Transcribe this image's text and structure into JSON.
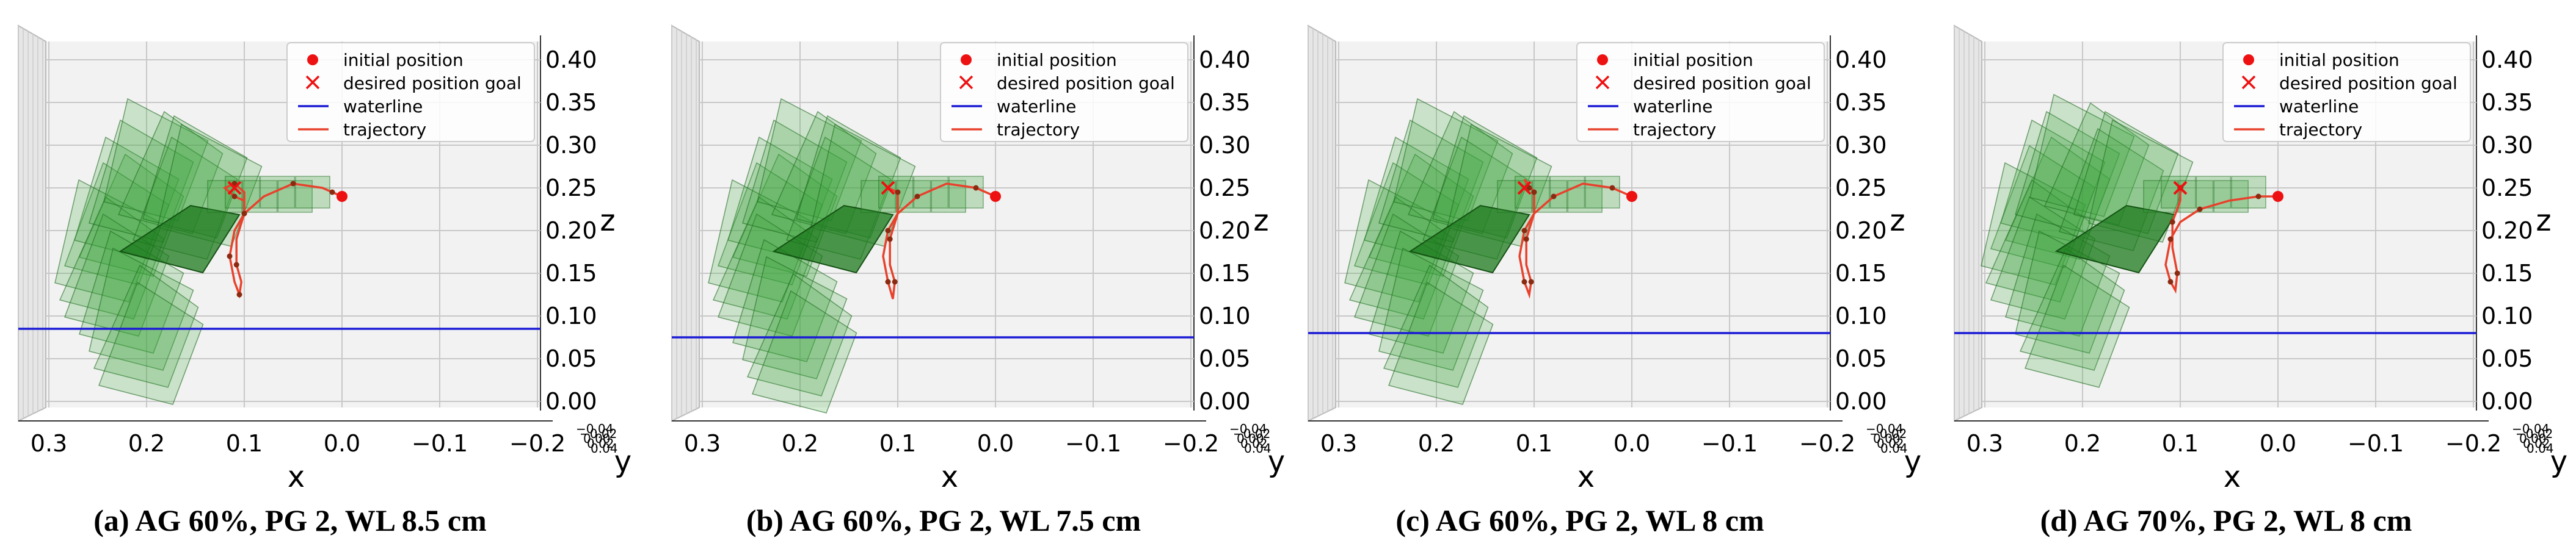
{
  "chart_data": [
    {
      "type": "3d-trajectory",
      "caption": "(a) AG 60%, PG 2, WL 8.5 cm",
      "xlabel": "x",
      "ylabel": "y",
      "zlabel": "z",
      "x_ticks": [
        "0.3",
        "0.2",
        "0.1",
        "0.0",
        "−0.1",
        "−0.2"
      ],
      "y_ticks": [
        "−0.04",
        "−0.02",
        "0.00",
        "0.02",
        "0.04"
      ],
      "z_ticks": [
        "0.00",
        "0.05",
        "0.10",
        "0.15",
        "0.20",
        "0.25",
        "0.30",
        "0.35",
        "0.40"
      ],
      "xlim": [
        0.3,
        -0.2
      ],
      "zlim": [
        0.0,
        0.4
      ],
      "legend": [
        "initial position",
        "desired position goal",
        "waterline",
        "trajectory"
      ],
      "waterline_z": 0.085,
      "initial_position": {
        "x": 0.0,
        "z": 0.24
      },
      "goal_position": {
        "x": 0.11,
        "z": 0.25
      },
      "trajectory": [
        {
          "x": 0.0,
          "z": 0.24
        },
        {
          "x": 0.01,
          "z": 0.245
        },
        {
          "x": 0.02,
          "z": 0.25
        },
        {
          "x": 0.05,
          "z": 0.255
        },
        {
          "x": 0.08,
          "z": 0.24
        },
        {
          "x": 0.1,
          "z": 0.22
        },
        {
          "x": 0.11,
          "z": 0.2
        },
        {
          "x": 0.115,
          "z": 0.17
        },
        {
          "x": 0.11,
          "z": 0.14
        },
        {
          "x": 0.105,
          "z": 0.125
        },
        {
          "x": 0.103,
          "z": 0.14
        },
        {
          "x": 0.108,
          "z": 0.16
        },
        {
          "x": 0.108,
          "z": 0.19
        },
        {
          "x": 0.1,
          "z": 0.22
        },
        {
          "x": 0.1,
          "z": 0.245
        },
        {
          "x": 0.11,
          "z": 0.255
        },
        {
          "x": 0.12,
          "z": 0.25
        },
        {
          "x": 0.11,
          "z": 0.24
        },
        {
          "x": 0.1,
          "z": 0.235
        }
      ],
      "plate_center_offsets": [
        {
          "x": 0.2,
          "z": 0.2
        },
        {
          "x": 0.215,
          "z": 0.19
        },
        {
          "x": 0.205,
          "z": 0.22
        },
        {
          "x": 0.225,
          "z": 0.17
        },
        {
          "x": 0.22,
          "z": 0.15
        },
        {
          "x": 0.215,
          "z": 0.13
        },
        {
          "x": 0.2,
          "z": 0.11
        },
        {
          "x": 0.19,
          "z": 0.09
        },
        {
          "x": 0.185,
          "z": 0.07
        },
        {
          "x": 0.18,
          "z": 0.05
        },
        {
          "x": 0.19,
          "z": 0.24
        },
        {
          "x": 0.175,
          "z": 0.265
        },
        {
          "x": 0.16,
          "z": 0.25
        },
        {
          "x": 0.145,
          "z": 0.22
        },
        {
          "x": 0.135,
          "z": 0.245
        },
        {
          "x": 0.12,
          "z": 0.235
        }
      ]
    },
    {
      "type": "3d-trajectory",
      "caption": "(b) AG 60%, PG 2, WL 7.5 cm",
      "xlabel": "x",
      "ylabel": "y",
      "zlabel": "z",
      "x_ticks": [
        "0.3",
        "0.2",
        "0.1",
        "0.0",
        "−0.1",
        "−0.2"
      ],
      "y_ticks": [
        "−0.04",
        "−0.02",
        "0.00",
        "0.02",
        "0.04"
      ],
      "z_ticks": [
        "0.00",
        "0.05",
        "0.10",
        "0.15",
        "0.20",
        "0.25",
        "0.30",
        "0.35",
        "0.40"
      ],
      "xlim": [
        0.3,
        -0.2
      ],
      "zlim": [
        0.0,
        0.4
      ],
      "legend": [
        "initial position",
        "desired position goal",
        "waterline",
        "trajectory"
      ],
      "waterline_z": 0.075,
      "initial_position": {
        "x": 0.0,
        "z": 0.24
      },
      "goal_position": {
        "x": 0.11,
        "z": 0.25
      },
      "trajectory": [
        {
          "x": 0.0,
          "z": 0.24
        },
        {
          "x": 0.02,
          "z": 0.25
        },
        {
          "x": 0.05,
          "z": 0.255
        },
        {
          "x": 0.08,
          "z": 0.24
        },
        {
          "x": 0.1,
          "z": 0.22
        },
        {
          "x": 0.11,
          "z": 0.2
        },
        {
          "x": 0.115,
          "z": 0.17
        },
        {
          "x": 0.11,
          "z": 0.14
        },
        {
          "x": 0.105,
          "z": 0.12
        },
        {
          "x": 0.103,
          "z": 0.14
        },
        {
          "x": 0.108,
          "z": 0.16
        },
        {
          "x": 0.108,
          "z": 0.19
        },
        {
          "x": 0.1,
          "z": 0.22
        },
        {
          "x": 0.1,
          "z": 0.245
        },
        {
          "x": 0.11,
          "z": 0.25
        }
      ],
      "plate_center_offsets": [
        {
          "x": 0.2,
          "z": 0.2
        },
        {
          "x": 0.215,
          "z": 0.19
        },
        {
          "x": 0.205,
          "z": 0.22
        },
        {
          "x": 0.225,
          "z": 0.17
        },
        {
          "x": 0.22,
          "z": 0.15
        },
        {
          "x": 0.215,
          "z": 0.13
        },
        {
          "x": 0.2,
          "z": 0.1
        },
        {
          "x": 0.19,
          "z": 0.08
        },
        {
          "x": 0.185,
          "z": 0.06
        },
        {
          "x": 0.18,
          "z": 0.04
        },
        {
          "x": 0.19,
          "z": 0.24
        },
        {
          "x": 0.175,
          "z": 0.265
        },
        {
          "x": 0.16,
          "z": 0.25
        },
        {
          "x": 0.145,
          "z": 0.22
        },
        {
          "x": 0.135,
          "z": 0.245
        },
        {
          "x": 0.12,
          "z": 0.235
        }
      ]
    },
    {
      "type": "3d-trajectory",
      "caption": "(c) AG 60%, PG 2, WL 8 cm",
      "xlabel": "x",
      "ylabel": "y",
      "zlabel": "z",
      "x_ticks": [
        "0.3",
        "0.2",
        "0.1",
        "0.0",
        "−0.1",
        "−0.2"
      ],
      "y_ticks": [
        "−0.04",
        "−0.02",
        "0.00",
        "0.02",
        "0.04"
      ],
      "z_ticks": [
        "0.00",
        "0.05",
        "0.10",
        "0.15",
        "0.20",
        "0.25",
        "0.30",
        "0.35",
        "0.40"
      ],
      "xlim": [
        0.3,
        -0.2
      ],
      "zlim": [
        0.0,
        0.4
      ],
      "legend": [
        "initial position",
        "desired position goal",
        "waterline",
        "trajectory"
      ],
      "waterline_z": 0.08,
      "initial_position": {
        "x": 0.0,
        "z": 0.24
      },
      "goal_position": {
        "x": 0.11,
        "z": 0.25
      },
      "trajectory": [
        {
          "x": 0.0,
          "z": 0.24
        },
        {
          "x": 0.02,
          "z": 0.25
        },
        {
          "x": 0.05,
          "z": 0.255
        },
        {
          "x": 0.08,
          "z": 0.24
        },
        {
          "x": 0.1,
          "z": 0.22
        },
        {
          "x": 0.11,
          "z": 0.2
        },
        {
          "x": 0.115,
          "z": 0.17
        },
        {
          "x": 0.11,
          "z": 0.14
        },
        {
          "x": 0.105,
          "z": 0.125
        },
        {
          "x": 0.103,
          "z": 0.14
        },
        {
          "x": 0.108,
          "z": 0.16
        },
        {
          "x": 0.108,
          "z": 0.19
        },
        {
          "x": 0.1,
          "z": 0.22
        },
        {
          "x": 0.1,
          "z": 0.245
        },
        {
          "x": 0.11,
          "z": 0.26
        },
        {
          "x": 0.105,
          "z": 0.25
        }
      ],
      "plate_center_offsets": [
        {
          "x": 0.2,
          "z": 0.2
        },
        {
          "x": 0.215,
          "z": 0.19
        },
        {
          "x": 0.205,
          "z": 0.22
        },
        {
          "x": 0.225,
          "z": 0.17
        },
        {
          "x": 0.22,
          "z": 0.15
        },
        {
          "x": 0.215,
          "z": 0.13
        },
        {
          "x": 0.2,
          "z": 0.11
        },
        {
          "x": 0.19,
          "z": 0.09
        },
        {
          "x": 0.185,
          "z": 0.07
        },
        {
          "x": 0.18,
          "z": 0.05
        },
        {
          "x": 0.19,
          "z": 0.24
        },
        {
          "x": 0.175,
          "z": 0.265
        },
        {
          "x": 0.16,
          "z": 0.25
        },
        {
          "x": 0.145,
          "z": 0.22
        },
        {
          "x": 0.135,
          "z": 0.245
        },
        {
          "x": 0.12,
          "z": 0.235
        }
      ]
    },
    {
      "type": "3d-trajectory",
      "caption": "(d) AG 70%, PG 2, WL 8 cm",
      "xlabel": "x",
      "ylabel": "y",
      "zlabel": "z",
      "x_ticks": [
        "0.3",
        "0.2",
        "0.1",
        "0.0",
        "−0.1",
        "−0.2"
      ],
      "y_ticks": [
        "−0.04",
        "−0.02",
        "0.00",
        "0.02",
        "0.04"
      ],
      "z_ticks": [
        "0.00",
        "0.05",
        "0.10",
        "0.15",
        "0.20",
        "0.25",
        "0.30",
        "0.35",
        "0.40"
      ],
      "xlim": [
        0.3,
        -0.2
      ],
      "zlim": [
        0.0,
        0.4
      ],
      "legend": [
        "initial position",
        "desired position goal",
        "waterline",
        "trajectory"
      ],
      "waterline_z": 0.08,
      "initial_position": {
        "x": 0.0,
        "z": 0.24
      },
      "goal_position": {
        "x": 0.1,
        "z": 0.25
      },
      "trajectory": [
        {
          "x": 0.0,
          "z": 0.24
        },
        {
          "x": 0.02,
          "z": 0.24
        },
        {
          "x": 0.05,
          "z": 0.235
        },
        {
          "x": 0.08,
          "z": 0.225
        },
        {
          "x": 0.1,
          "z": 0.21
        },
        {
          "x": 0.11,
          "z": 0.19
        },
        {
          "x": 0.115,
          "z": 0.16
        },
        {
          "x": 0.11,
          "z": 0.14
        },
        {
          "x": 0.105,
          "z": 0.13
        },
        {
          "x": 0.103,
          "z": 0.15
        },
        {
          "x": 0.108,
          "z": 0.18
        },
        {
          "x": 0.108,
          "z": 0.21
        },
        {
          "x": 0.1,
          "z": 0.235
        },
        {
          "x": 0.1,
          "z": 0.25
        },
        {
          "x": 0.095,
          "z": 0.255
        }
      ],
      "plate_center_offsets": [
        {
          "x": 0.21,
          "z": 0.22
        },
        {
          "x": 0.225,
          "z": 0.21
        },
        {
          "x": 0.215,
          "z": 0.24
        },
        {
          "x": 0.235,
          "z": 0.19
        },
        {
          "x": 0.23,
          "z": 0.17
        },
        {
          "x": 0.225,
          "z": 0.15
        },
        {
          "x": 0.21,
          "z": 0.13
        },
        {
          "x": 0.2,
          "z": 0.11
        },
        {
          "x": 0.195,
          "z": 0.09
        },
        {
          "x": 0.19,
          "z": 0.07
        },
        {
          "x": 0.2,
          "z": 0.25
        },
        {
          "x": 0.185,
          "z": 0.27
        },
        {
          "x": 0.17,
          "z": 0.26
        },
        {
          "x": 0.155,
          "z": 0.23
        },
        {
          "x": 0.14,
          "z": 0.25
        },
        {
          "x": 0.125,
          "z": 0.24
        }
      ]
    }
  ],
  "colors": {
    "trajectory": "#e8412c",
    "markers": "#ee1111",
    "waterline": "#1a1ad6",
    "plate_fill": "#3aa33a",
    "plate_edge": "#1e6b1e",
    "pane": "#f2f2f2",
    "grid": "#c8c8c8"
  }
}
